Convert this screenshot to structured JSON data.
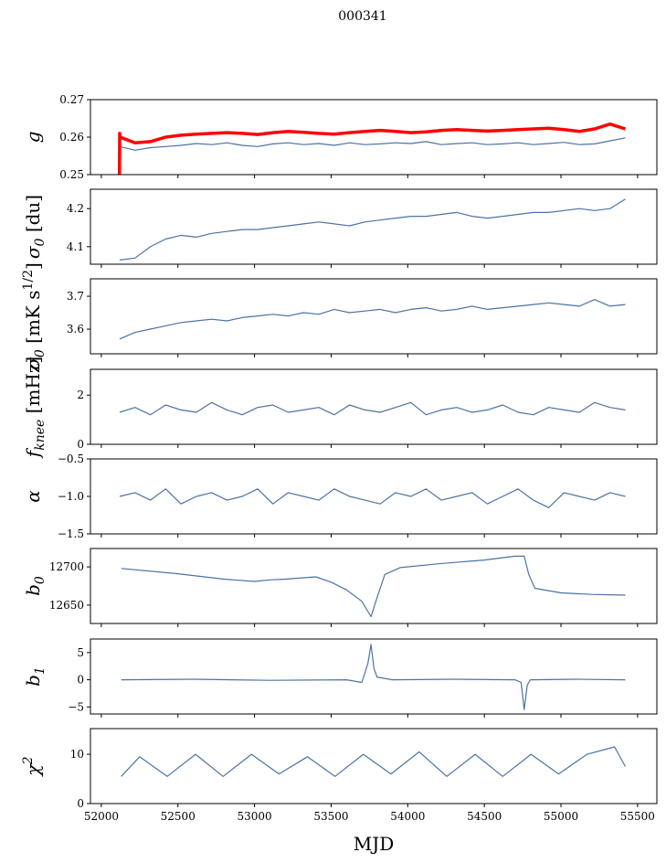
{
  "chart_data": {
    "type": "line",
    "title": "000341",
    "xlabel": "MJD",
    "xlim": [
      51929,
      55626
    ],
    "xticks": [
      52000,
      52500,
      53000,
      53500,
      54000,
      54500,
      55000,
      55500
    ],
    "colors": {
      "series": "#4c72a4",
      "overlay": "#ff0000",
      "axis": "#000000"
    },
    "x_common": [
      52120,
      52220,
      52320,
      52420,
      52520,
      52620,
      52720,
      52820,
      52920,
      53020,
      53120,
      53220,
      53320,
      53420,
      53520,
      53620,
      53720,
      53820,
      53920,
      54020,
      54120,
      54220,
      54320,
      54420,
      54520,
      54620,
      54720,
      54820,
      54920,
      55020,
      55120,
      55220,
      55320,
      55420
    ],
    "panels": [
      {
        "ylabel": {
          "main": "g",
          "sub": "",
          "sup": "",
          "unit": ""
        },
        "ylim": [
          0.25,
          0.27
        ],
        "yticks": [
          0.25,
          0.26,
          0.27
        ],
        "ytick_labels": [
          "0.25",
          "0.26",
          "0.27"
        ],
        "series": [
          {
            "name": "g",
            "color": "#4c72a4",
            "y": [
              0.2575,
              0.2565,
              0.2572,
              0.2575,
              0.2578,
              0.2583,
              0.258,
              0.2585,
              0.2578,
              0.2575,
              0.2582,
              0.2585,
              0.258,
              0.2583,
              0.2578,
              0.2585,
              0.258,
              0.2582,
              0.2585,
              0.2583,
              0.2588,
              0.258,
              0.2583,
              0.2585,
              0.258,
              0.2582,
              0.2585,
              0.258,
              0.2583,
              0.2586,
              0.258,
              0.2582,
              0.259,
              0.2598
            ]
          },
          {
            "name": "g_model",
            "color": "#ff0000",
            "width": 3.5,
            "x": [
              52118,
              52120,
              52122,
              52220,
              52320,
              52420,
              52520,
              52620,
              52720,
              52820,
              52920,
              53020,
              53120,
              53220,
              53320,
              53420,
              53520,
              53620,
              53720,
              53820,
              53920,
              54020,
              54120,
              54220,
              54320,
              54420,
              54520,
              54620,
              54720,
              54820,
              54920,
              55020,
              55120,
              55220,
              55320,
              55420
            ],
            "y": [
              0.25,
              0.261,
              0.26,
              0.2585,
              0.2588,
              0.26,
              0.2605,
              0.2608,
              0.261,
              0.2612,
              0.261,
              0.2607,
              0.2612,
              0.2615,
              0.2613,
              0.261,
              0.2608,
              0.2612,
              0.2615,
              0.2618,
              0.2615,
              0.2612,
              0.2614,
              0.2618,
              0.262,
              0.2618,
              0.2616,
              0.2618,
              0.262,
              0.2622,
              0.2624,
              0.262,
              0.2615,
              0.2622,
              0.2635,
              0.2622
            ]
          }
        ]
      },
      {
        "ylabel": {
          "main": "σ",
          "sub": "0",
          "sup": "",
          "unit": " [du]"
        },
        "ylim": [
          4.054,
          4.251
        ],
        "yticks": [
          4.1,
          4.2
        ],
        "ytick_labels": [
          "4.1",
          "4.2"
        ],
        "series": [
          {
            "name": "sigma0",
            "color": "#4c72a4",
            "y": [
              4.065,
              4.07,
              4.1,
              4.12,
              4.13,
              4.125,
              4.135,
              4.14,
              4.145,
              4.145,
              4.15,
              4.155,
              4.16,
              4.165,
              4.16,
              4.155,
              4.165,
              4.17,
              4.175,
              4.18,
              4.18,
              4.185,
              4.19,
              4.18,
              4.175,
              4.18,
              4.185,
              4.19,
              4.19,
              4.195,
              4.2,
              4.195,
              4.2,
              4.225
            ]
          }
        ]
      },
      {
        "ylabel": {
          "main": "σ",
          "sub": "0",
          "sup": "1/2",
          "unit": " [mK s",
          "unit_end": "]"
        },
        "ylim": [
          3.525,
          3.753
        ],
        "yticks": [
          3.6,
          3.7
        ],
        "ytick_labels": [
          "3.6",
          "3.7"
        ],
        "series": [
          {
            "name": "sigma_wn",
            "color": "#4c72a4",
            "y": [
              3.57,
              3.59,
              3.6,
              3.61,
              3.62,
              3.625,
              3.63,
              3.625,
              3.635,
              3.64,
              3.645,
              3.64,
              3.65,
              3.645,
              3.66,
              3.65,
              3.655,
              3.66,
              3.65,
              3.66,
              3.665,
              3.655,
              3.66,
              3.67,
              3.66,
              3.665,
              3.67,
              3.675,
              3.68,
              3.675,
              3.67,
              3.69,
              3.67,
              3.675
            ]
          }
        ]
      },
      {
        "ylabel": {
          "main": "f",
          "sub": "knee",
          "sup": "",
          "unit": " [mHz]"
        },
        "ylim": [
          0,
          3.05
        ],
        "yticks": [
          0,
          2
        ],
        "ytick_labels": [
          "0",
          "2"
        ],
        "series": [
          {
            "name": "fknee",
            "color": "#4c72a4",
            "y": [
              1.3,
              1.5,
              1.2,
              1.6,
              1.4,
              1.3,
              1.7,
              1.4,
              1.2,
              1.5,
              1.6,
              1.3,
              1.4,
              1.5,
              1.2,
              1.6,
              1.4,
              1.3,
              1.5,
              1.7,
              1.2,
              1.4,
              1.5,
              1.3,
              1.4,
              1.6,
              1.3,
              1.2,
              1.5,
              1.4,
              1.3,
              1.7,
              1.5,
              1.4
            ]
          }
        ]
      },
      {
        "ylabel": {
          "main": "α",
          "sub": "",
          "sup": "",
          "unit": ""
        },
        "ylim": [
          -1.5,
          -0.5
        ],
        "yticks": [
          -1.5,
          -1.0,
          -0.5
        ],
        "ytick_labels": [
          "−1.5",
          "−1.0",
          "−0.5"
        ],
        "series": [
          {
            "name": "alpha",
            "color": "#4c72a4",
            "y": [
              -1.0,
              -0.95,
              -1.05,
              -0.9,
              -1.1,
              -1.0,
              -0.95,
              -1.05,
              -1.0,
              -0.9,
              -1.1,
              -0.95,
              -1.0,
              -1.05,
              -0.9,
              -1.0,
              -1.05,
              -1.1,
              -0.95,
              -1.0,
              -0.9,
              -1.05,
              -1.0,
              -0.95,
              -1.1,
              -1.0,
              -0.9,
              -1.05,
              -1.15,
              -0.95,
              -1.0,
              -1.05,
              -0.95,
              -1.0
            ]
          }
        ]
      },
      {
        "ylabel": {
          "main": "b",
          "sub": "0",
          "sup": "",
          "unit": ""
        },
        "ylim": [
          12626,
          12724
        ],
        "yticks": [
          12650,
          12700
        ],
        "ytick_labels": [
          "12650",
          "12700"
        ],
        "series": [
          {
            "name": "b0",
            "color": "#4c72a4",
            "x": [
              52130,
              52500,
              52800,
              53000,
              53100,
              53200,
              53400,
              53500,
              53600,
              53700,
              53760,
              53800,
              53850,
              53950,
              54200,
              54500,
              54700,
              54760,
              54790,
              54830,
              55000,
              55200,
              55420
            ],
            "y": [
              12698,
              12691,
              12684,
              12681,
              12683,
              12684,
              12687,
              12680,
              12670,
              12655,
              12635,
              12660,
              12690,
              12699,
              12704,
              12709,
              12714,
              12714,
              12690,
              12672,
              12666,
              12664,
              12663
            ]
          }
        ]
      },
      {
        "ylabel": {
          "main": "b",
          "sub": "1",
          "sup": "",
          "unit": ""
        },
        "ylim": [
          -6.3,
          7.5
        ],
        "yticks": [
          -5,
          0,
          5
        ],
        "ytick_labels": [
          "−5",
          "0",
          "5"
        ],
        "series": [
          {
            "name": "b1",
            "color": "#4c72a4",
            "x": [
              52130,
              52600,
              53100,
              53600,
              53700,
              53740,
              53760,
              53780,
              53800,
              53900,
              54300,
              54700,
              54740,
              54760,
              54780,
              54800,
              55100,
              55420
            ],
            "y": [
              0,
              0.1,
              -0.1,
              0,
              -0.5,
              3,
              6.5,
              2,
              0.5,
              0,
              0.1,
              0,
              -0.5,
              -5.5,
              -1,
              0,
              0.1,
              0
            ]
          }
        ]
      },
      {
        "ylabel": {
          "main": "χ",
          "sub": "",
          "sup": "2",
          "unit": ""
        },
        "ylim": [
          0,
          15.2
        ],
        "yticks": [
          0,
          10
        ],
        "ytick_labels": [
          "0",
          "10"
        ],
        "series": [
          {
            "name": "chi2",
            "color": "#4c72a4",
            "x": [
              52130,
              52250,
              52430,
              52615,
              52795,
              52980,
              53160,
              53345,
              53525,
              53710,
              53890,
              54075,
              54255,
              54440,
              54620,
              54805,
              54985,
              55170,
              55350,
              55420
            ],
            "y": [
              5.5,
              9.5,
              5.5,
              10,
              5.5,
              10,
              6,
              9.5,
              5.5,
              10,
              6,
              10.5,
              5.5,
              10,
              5.5,
              10,
              6,
              10,
              11.5,
              7.5
            ]
          }
        ]
      }
    ]
  }
}
